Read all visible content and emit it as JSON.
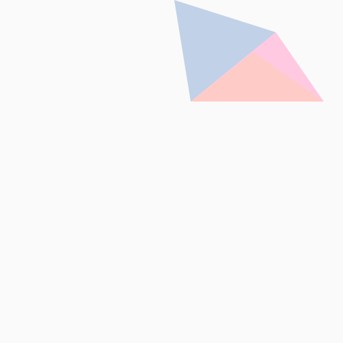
{
  "colors": {
    "background": "#fafafa",
    "blue_triangle": "#c1d1e7",
    "pink_triangle": "#ffc9e1",
    "salmon_triangle": "#ffcbc7"
  }
}
